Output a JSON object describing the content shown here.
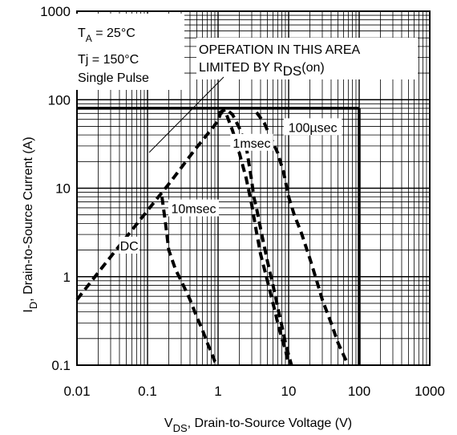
{
  "chart_data": {
    "type": "line",
    "title": "",
    "xlabel_main": "V",
    "xlabel_sub": "DS",
    "xlabel_rest": ", Drain-to-Source Voltage (V)",
    "ylabel_main": "I",
    "ylabel_sub": "D",
    "ylabel_rest": ",  Drain-to-Source Current (A)",
    "xscale": "log",
    "yscale": "log",
    "xlim": [
      0.01,
      1000
    ],
    "ylim": [
      0.1,
      1000
    ],
    "x_ticks": [
      {
        "value": 0.01,
        "label": "0.01"
      },
      {
        "value": 0.1,
        "label": "0.1"
      },
      {
        "value": 1,
        "label": "1"
      },
      {
        "value": 10,
        "label": "10"
      },
      {
        "value": 100,
        "label": "100"
      },
      {
        "value": 1000,
        "label": "1000"
      }
    ],
    "y_ticks": [
      {
        "value": 0.1,
        "label": "0.1"
      },
      {
        "value": 1,
        "label": "1"
      },
      {
        "value": 10,
        "label": "10"
      },
      {
        "value": 100,
        "label": "100"
      },
      {
        "value": 1000,
        "label": "1000"
      }
    ],
    "grid": true,
    "limit_box": {
      "x_max": 100,
      "y_max": 80
    },
    "conditions": {
      "ta_main": "T",
      "ta_sub": "A",
      "ta_rest": " = 25°C",
      "tj": "Tj = 150°C",
      "pulse": "Single Pulse"
    },
    "rds_note": {
      "line1": "OPERATION IN THIS AREA",
      "line2_main": "LIMITED BY R",
      "line2_sub": "DS",
      "line2_rest": "(on)"
    },
    "series": [
      {
        "name": "DC",
        "style": "dashed",
        "label_at": {
          "x": 0.055,
          "y": 2.2
        },
        "x": [
          0.01,
          0.0215,
          0.0464,
          0.1,
          0.215,
          0.464,
          0.8,
          1.0,
          1.1,
          1.3,
          1.6,
          2.0,
          2.5,
          3.0,
          3.5,
          4.0,
          5.0,
          6.0,
          7.0,
          8.0,
          9.0,
          10.0
        ],
        "y": [
          0.55,
          1.2,
          2.6,
          5.6,
          12,
          27,
          46,
          58,
          72,
          70,
          45,
          25,
          13,
          6.5,
          3.2,
          1.8,
          0.9,
          0.5,
          0.3,
          0.2,
          0.15,
          0.1
        ]
      },
      {
        "name": "10msec",
        "style": "dashed",
        "label_at": {
          "x": 0.45,
          "y": 5.8
        },
        "x": [
          0.16,
          0.18,
          0.2,
          0.25,
          0.3,
          0.4,
          0.5,
          0.6,
          0.7,
          0.8,
          0.9,
          1.0
        ],
        "y": [
          8.0,
          4.0,
          2.0,
          1.2,
          0.9,
          0.55,
          0.35,
          0.25,
          0.18,
          0.14,
          0.11,
          0.1
        ]
      },
      {
        "name": "1msec",
        "style": "dashed",
        "label_at": {
          "x": 3.0,
          "y": 32
        },
        "x": [
          1.0,
          1.3,
          1.6,
          2.0,
          2.5,
          3.0,
          3.2,
          3.5,
          4.0,
          5.0,
          6.0,
          7.0,
          8.0,
          9.0,
          10.0,
          11.0
        ],
        "y": [
          70,
          78,
          68,
          48,
          30,
          12,
          8,
          6,
          3.5,
          1.5,
          0.8,
          0.45,
          0.28,
          0.18,
          0.13,
          0.1
        ]
      },
      {
        "name": "100µsec",
        "style": "dashed",
        "label_at": {
          "x": 22,
          "y": 48
        },
        "x": [
          3.5,
          4.5,
          5.5,
          7.0,
          8.5,
          10.0,
          12,
          15,
          20,
          25,
          30,
          40,
          50,
          60,
          70
        ],
        "y": [
          72,
          55,
          38,
          25,
          15,
          8,
          5,
          3.2,
          1.6,
          0.9,
          0.55,
          0.3,
          0.18,
          0.13,
          0.1
        ]
      }
    ]
  }
}
